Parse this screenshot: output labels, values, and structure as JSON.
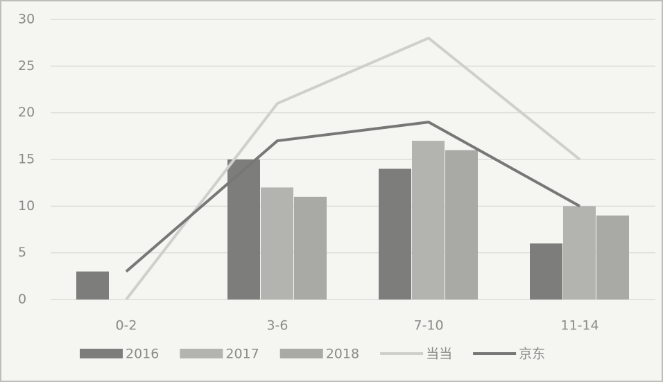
{
  "chart_data": {
    "type": "bar-line",
    "categories": [
      "0-2",
      "3-6",
      "7-10",
      "11-14"
    ],
    "series": [
      {
        "name": "2016",
        "kind": "bar",
        "color": "#7d7d7b",
        "values": [
          3,
          15,
          14,
          6
        ]
      },
      {
        "name": "2017",
        "kind": "bar",
        "color": "#b3b3b0",
        "values": [
          0,
          12,
          17,
          10
        ]
      },
      {
        "name": "2018",
        "kind": "bar",
        "color": "#a9a9a6",
        "values": [
          0,
          11,
          16,
          9
        ]
      },
      {
        "name": "当当",
        "kind": "line",
        "color": "#cfcfcc",
        "values": [
          0,
          21,
          28,
          15
        ]
      },
      {
        "name": "京东",
        "kind": "line",
        "color": "#777775",
        "values": [
          3,
          17,
          19,
          10
        ]
      }
    ],
    "ylim": [
      0,
      30
    ],
    "yticks": [
      0,
      5,
      10,
      15,
      20,
      25,
      30
    ],
    "grid": true,
    "legend": "bottom"
  }
}
